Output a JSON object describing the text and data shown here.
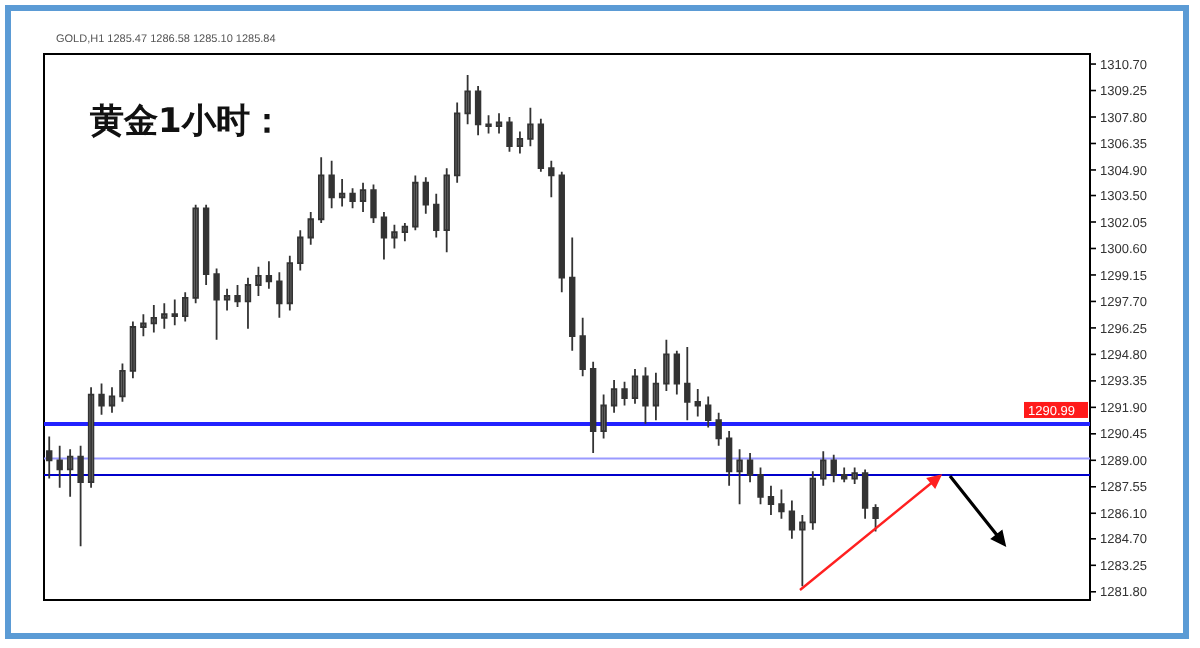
{
  "chart_data": {
    "type": "candlestick",
    "title": "黄金1小时：",
    "subtitle": "GOLD,H1  1285.47 1286.58 1285.10 1285.84",
    "color": "#333333",
    "categories": [
      null,
      null,
      null,
      null,
      null,
      null,
      null,
      null,
      null,
      null,
      null,
      null,
      null,
      null,
      null,
      null,
      null,
      null,
      null,
      null,
      null,
      null,
      null,
      null,
      null,
      null,
      null,
      null,
      null,
      null,
      null,
      null,
      null,
      null,
      null,
      null,
      null,
      null,
      null,
      null,
      null,
      null,
      null,
      null,
      null,
      null,
      null,
      null,
      null,
      null,
      null,
      null,
      null,
      null,
      null,
      null,
      null,
      null,
      null,
      null,
      null,
      null,
      null,
      null,
      null,
      null,
      null,
      null,
      null,
      null,
      null,
      null,
      null,
      null,
      null,
      null,
      null,
      null,
      null,
      null,
      null,
      null,
      null,
      null,
      null,
      null,
      null,
      null,
      null,
      null,
      null,
      null,
      null,
      null,
      null,
      null,
      null,
      null,
      null,
      null
    ],
    "ohlc": [
      [
        1289.5,
        1290.3,
        1288.0,
        1289.0
      ],
      [
        1289.0,
        1289.8,
        1287.5,
        1288.5
      ],
      [
        1288.5,
        1289.6,
        1287.0,
        1289.2
      ],
      [
        1289.2,
        1289.8,
        1284.3,
        1287.8
      ],
      [
        1287.8,
        1293.0,
        1287.5,
        1292.6
      ],
      [
        1292.6,
        1293.2,
        1291.5,
        1292.0
      ],
      [
        1292.0,
        1293.0,
        1291.6,
        1292.5
      ],
      [
        1292.5,
        1294.3,
        1292.2,
        1293.9
      ],
      [
        1293.9,
        1296.6,
        1293.5,
        1296.3
      ],
      [
        1296.3,
        1297.0,
        1295.8,
        1296.5
      ],
      [
        1296.5,
        1297.5,
        1296.0,
        1296.8
      ],
      [
        1296.8,
        1297.6,
        1296.2,
        1297.0
      ],
      [
        1297.0,
        1297.8,
        1296.4,
        1296.9
      ],
      [
        1296.9,
        1298.2,
        1296.6,
        1297.9
      ],
      [
        1297.9,
        1303.0,
        1297.6,
        1302.8
      ],
      [
        1302.8,
        1303.0,
        1298.6,
        1299.2
      ],
      [
        1299.2,
        1299.5,
        1295.6,
        1297.8
      ],
      [
        1297.8,
        1298.4,
        1297.2,
        1298.0
      ],
      [
        1298.0,
        1298.6,
        1297.4,
        1297.7
      ],
      [
        1297.7,
        1299.0,
        1296.2,
        1298.6
      ],
      [
        1298.6,
        1299.6,
        1298.0,
        1299.1
      ],
      [
        1299.1,
        1299.9,
        1298.4,
        1298.8
      ],
      [
        1298.8,
        1299.3,
        1296.8,
        1297.6
      ],
      [
        1297.6,
        1300.2,
        1297.2,
        1299.8
      ],
      [
        1299.8,
        1301.6,
        1299.4,
        1301.2
      ],
      [
        1301.2,
        1302.6,
        1300.8,
        1302.2
      ],
      [
        1302.2,
        1305.6,
        1302.0,
        1304.6
      ],
      [
        1304.6,
        1305.4,
        1302.8,
        1303.4
      ],
      [
        1303.4,
        1304.4,
        1302.9,
        1303.6
      ],
      [
        1303.6,
        1303.9,
        1302.8,
        1303.2
      ],
      [
        1303.2,
        1304.2,
        1302.6,
        1303.8
      ],
      [
        1303.8,
        1304.1,
        1302.0,
        1302.3
      ],
      [
        1302.3,
        1302.6,
        1300.0,
        1301.2
      ],
      [
        1301.2,
        1301.9,
        1300.6,
        1301.5
      ],
      [
        1301.5,
        1302.0,
        1301.0,
        1301.8
      ],
      [
        1301.8,
        1304.6,
        1301.6,
        1304.2
      ],
      [
        1304.2,
        1304.5,
        1302.5,
        1303.0
      ],
      [
        1303.0,
        1303.6,
        1301.2,
        1301.6
      ],
      [
        1301.6,
        1305.0,
        1300.4,
        1304.6
      ],
      [
        1304.6,
        1308.6,
        1304.2,
        1308.0
      ],
      [
        1308.0,
        1310.1,
        1307.4,
        1309.2
      ],
      [
        1309.2,
        1309.5,
        1306.8,
        1307.4
      ],
      [
        1307.4,
        1307.9,
        1306.9,
        1307.3
      ],
      [
        1307.3,
        1308.0,
        1306.9,
        1307.5
      ],
      [
        1307.5,
        1307.8,
        1305.9,
        1306.2
      ],
      [
        1306.2,
        1307.0,
        1305.8,
        1306.6
      ],
      [
        1306.6,
        1308.3,
        1306.2,
        1307.4
      ],
      [
        1307.4,
        1307.7,
        1304.8,
        1305.0
      ],
      [
        1305.0,
        1305.4,
        1303.4,
        1304.6
      ],
      [
        1304.6,
        1304.8,
        1298.2,
        1299.0
      ],
      [
        1299.0,
        1301.2,
        1295.0,
        1295.8
      ],
      [
        1295.8,
        1296.8,
        1293.6,
        1294.0
      ],
      [
        1294.0,
        1294.4,
        1289.4,
        1290.6
      ],
      [
        1290.6,
        1292.6,
        1290.2,
        1292.0
      ],
      [
        1292.0,
        1293.4,
        1291.6,
        1292.9
      ],
      [
        1292.9,
        1293.3,
        1292.0,
        1292.4
      ],
      [
        1292.4,
        1294.0,
        1292.1,
        1293.6
      ],
      [
        1293.6,
        1294.1,
        1291.0,
        1292.0
      ],
      [
        1292.0,
        1293.8,
        1291.2,
        1293.2
      ],
      [
        1293.2,
        1295.6,
        1292.8,
        1294.8
      ],
      [
        1294.8,
        1295.0,
        1292.6,
        1293.2
      ],
      [
        1293.2,
        1295.2,
        1291.2,
        1292.2
      ],
      [
        1292.2,
        1292.9,
        1291.4,
        1292.0
      ],
      [
        1292.0,
        1292.5,
        1290.8,
        1291.2
      ],
      [
        1291.2,
        1291.6,
        1289.8,
        1290.2
      ],
      [
        1290.2,
        1290.6,
        1287.6,
        1288.4
      ],
      [
        1288.4,
        1289.6,
        1286.6,
        1289.0
      ],
      [
        1289.0,
        1289.4,
        1287.8,
        1288.2
      ],
      [
        1288.2,
        1288.6,
        1286.6,
        1287.0
      ],
      [
        1287.0,
        1287.6,
        1286.0,
        1286.6
      ],
      [
        1286.6,
        1287.4,
        1285.8,
        1286.2
      ],
      [
        1286.2,
        1286.8,
        1284.7,
        1285.2
      ],
      [
        1285.2,
        1286.0,
        1282.1,
        1285.6
      ],
      [
        1285.6,
        1288.4,
        1285.2,
        1288.0
      ],
      [
        1288.0,
        1289.5,
        1287.6,
        1289.0
      ],
      [
        1289.0,
        1289.3,
        1287.8,
        1288.2
      ],
      [
        1288.2,
        1288.6,
        1287.8,
        1288.0
      ],
      [
        1288.0,
        1288.6,
        1287.7,
        1288.3
      ],
      [
        1288.3,
        1288.5,
        1285.8,
        1286.4
      ],
      [
        1286.4,
        1286.6,
        1285.1,
        1285.84
      ],
      null,
      null,
      null,
      null,
      null,
      null,
      null,
      null,
      null,
      null,
      null,
      null,
      null,
      null,
      null,
      null,
      null,
      null,
      null,
      null
    ],
    "ylim": [
      1281.35,
      1311.25
    ],
    "yticks": [
      {
        "value": 1310.7,
        "label": "1310.70"
      },
      {
        "value": 1309.25,
        "label": "1309.25"
      },
      {
        "value": 1307.8,
        "label": "1307.80"
      },
      {
        "value": 1306.35,
        "label": "1306.35"
      },
      {
        "value": 1304.9,
        "label": "1304.90"
      },
      {
        "value": 1303.5,
        "label": "1303.50"
      },
      {
        "value": 1302.05,
        "label": "1302.05"
      },
      {
        "value": 1300.6,
        "label": "1300.60"
      },
      {
        "value": 1299.15,
        "label": "1299.15"
      },
      {
        "value": 1297.7,
        "label": "1297.70"
      },
      {
        "value": 1296.25,
        "label": "1296.25"
      },
      {
        "value": 1294.8,
        "label": "1294.80"
      },
      {
        "value": 1293.35,
        "label": "1293.35"
      },
      {
        "value": 1291.9,
        "label": "1291.90"
      },
      {
        "value": 1290.45,
        "label": "1290.45"
      },
      {
        "value": 1289.0,
        "label": "1289.00"
      },
      {
        "value": 1287.55,
        "label": "1287.55"
      },
      {
        "value": 1286.1,
        "label": "1286.10"
      },
      {
        "value": 1284.7,
        "label": "1284.70"
      },
      {
        "value": 1283.25,
        "label": "1283.25"
      },
      {
        "value": 1281.8,
        "label": "1281.80"
      }
    ],
    "ref_lines": [
      {
        "axis": "y",
        "value": 1290.99,
        "label": "1290.99",
        "color": "#2222ff"
      },
      {
        "axis": "y",
        "value": 1289.1,
        "color": "#9a9aff"
      },
      {
        "axis": "y",
        "value": 1288.2,
        "color": "#0000cc"
      }
    ],
    "grid": false,
    "tick_labels": "y"
  }
}
